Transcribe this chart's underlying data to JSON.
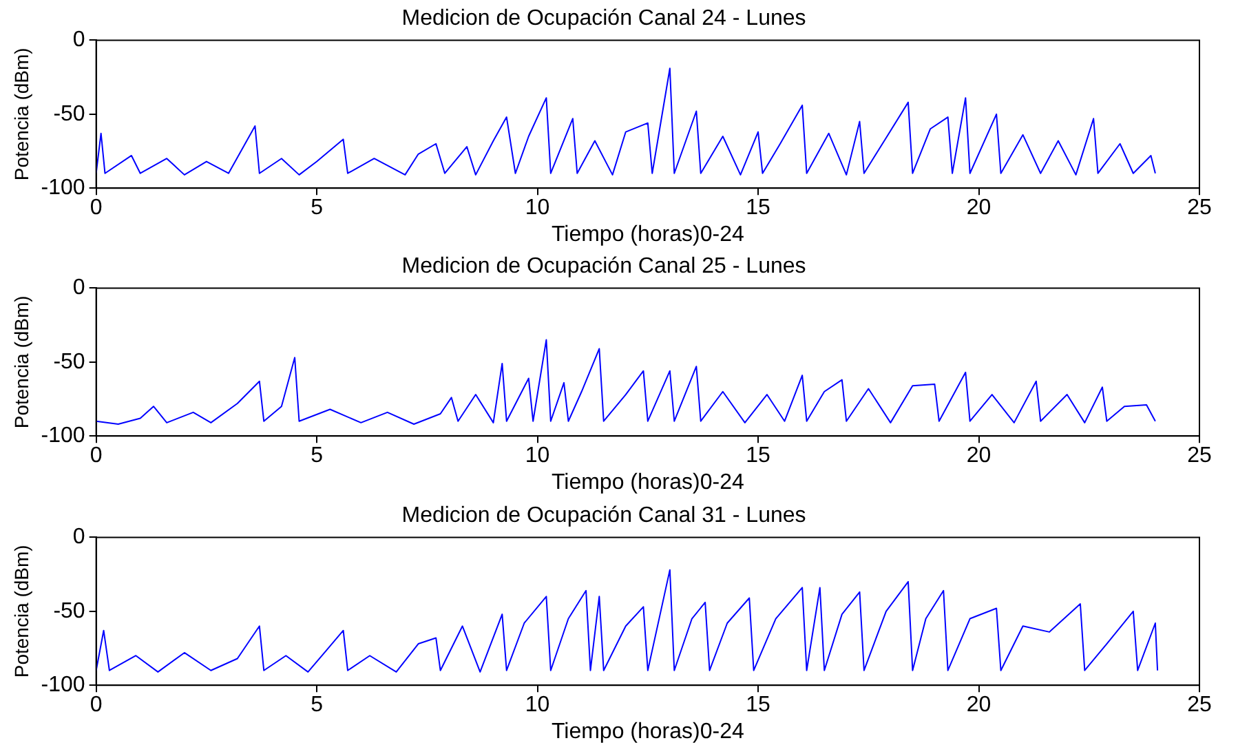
{
  "chart_data": [
    {
      "type": "line",
      "title": "Medicion de Ocupación Canal 24 - Lunes",
      "xlabel": "Tiempo (horas)0-24",
      "ylabel": "Potencia (dBm)",
      "xlim": [
        0,
        25
      ],
      "xticks": [
        0,
        5,
        10,
        15,
        20,
        25
      ],
      "ylim": [
        -100,
        0
      ],
      "yticks": [
        -100,
        -50,
        0
      ],
      "grid": false,
      "legend": false,
      "series": [
        {
          "color": "#0000ff",
          "x": [
            0,
            0.11,
            0.2,
            0.8,
            1.0,
            1.6,
            2.0,
            2.5,
            3.0,
            3.6,
            3.7,
            4.2,
            4.6,
            5.0,
            5.6,
            5.7,
            6.3,
            7.0,
            7.3,
            7.7,
            7.9,
            8.4,
            8.6,
            9.0,
            9.3,
            9.5,
            9.8,
            10.2,
            10.3,
            10.8,
            10.9,
            11.3,
            11.7,
            12.0,
            12.5,
            12.6,
            13.0,
            13.1,
            13.6,
            13.7,
            14.2,
            14.6,
            15.0,
            15.1,
            15.5,
            16.0,
            16.1,
            16.6,
            17.0,
            17.3,
            17.4,
            17.9,
            18.4,
            18.5,
            18.9,
            19.3,
            19.4,
            19.7,
            19.8,
            20.4,
            20.5,
            21.0,
            21.4,
            21.8,
            22.2,
            22.6,
            22.7,
            23.2,
            23.5,
            23.9,
            24.0
          ],
          "values": [
            -90,
            -63,
            -90,
            -78,
            -90,
            -80,
            -91,
            -82,
            -90,
            -58,
            -90,
            -80,
            -91,
            -82,
            -67,
            -90,
            -80,
            -91,
            -77,
            -70,
            -90,
            -72,
            -91,
            -68,
            -52,
            -90,
            -65,
            -39,
            -90,
            -53,
            -90,
            -68,
            -91,
            -62,
            -56,
            -90,
            -19,
            -90,
            -48,
            -90,
            -65,
            -91,
            -62,
            -90,
            -70,
            -44,
            -90,
            -63,
            -91,
            -55,
            -90,
            -66,
            -42,
            -90,
            -60,
            -52,
            -90,
            -39,
            -90,
            -50,
            -90,
            -64,
            -90,
            -68,
            -91,
            -53,
            -90,
            -70,
            -90,
            -78,
            -90
          ]
        }
      ]
    },
    {
      "type": "line",
      "title": "Medicion de Ocupación Canal 25 - Lunes",
      "xlabel": "Tiempo (horas)0-24",
      "ylabel": "Potencia (dBm)",
      "xlim": [
        0,
        25
      ],
      "xticks": [
        0,
        5,
        10,
        15,
        20,
        25
      ],
      "ylim": [
        -100,
        0
      ],
      "yticks": [
        -100,
        -50,
        0
      ],
      "grid": false,
      "legend": false,
      "series": [
        {
          "color": "#0000ff",
          "x": [
            0,
            0.5,
            1.0,
            1.3,
            1.6,
            2.2,
            2.6,
            3.2,
            3.7,
            3.8,
            4.2,
            4.5,
            4.6,
            5.3,
            6.0,
            6.6,
            7.2,
            7.8,
            8.05,
            8.2,
            8.6,
            9.0,
            9.2,
            9.3,
            9.8,
            9.9,
            10.2,
            10.3,
            10.6,
            10.7,
            11.0,
            11.4,
            11.5,
            12.0,
            12.4,
            12.5,
            13.0,
            13.1,
            13.6,
            13.7,
            14.2,
            14.7,
            15.2,
            15.6,
            16.0,
            16.1,
            16.5,
            16.9,
            17.0,
            17.5,
            18.0,
            18.5,
            19.0,
            19.1,
            19.7,
            19.8,
            20.3,
            20.8,
            21.3,
            21.4,
            22.0,
            22.4,
            22.8,
            22.9,
            23.3,
            23.8,
            24.0
          ],
          "values": [
            -90,
            -92,
            -88,
            -80,
            -91,
            -84,
            -91,
            -78,
            -63,
            -90,
            -80,
            -47,
            -90,
            -82,
            -91,
            -84,
            -92,
            -85,
            -74,
            -90,
            -72,
            -91,
            -51,
            -90,
            -61,
            -90,
            -35,
            -90,
            -64,
            -90,
            -70,
            -41,
            -90,
            -72,
            -56,
            -90,
            -56,
            -90,
            -53,
            -90,
            -70,
            -91,
            -72,
            -90,
            -59,
            -90,
            -70,
            -62,
            -90,
            -68,
            -91,
            -66,
            -65,
            -90,
            -57,
            -90,
            -72,
            -91,
            -63,
            -90,
            -72,
            -91,
            -67,
            -90,
            -80,
            -79,
            -90
          ]
        }
      ]
    },
    {
      "type": "line",
      "title": "Medicion de Ocupación Canal 31 - Lunes",
      "xlabel": "Tiempo (horas)0-24",
      "ylabel": "Potencia (dBm)",
      "xlim": [
        0,
        25
      ],
      "xticks": [
        0,
        5,
        10,
        15,
        20,
        25
      ],
      "ylim": [
        -100,
        0
      ],
      "yticks": [
        -100,
        -50,
        0
      ],
      "grid": false,
      "legend": false,
      "series": [
        {
          "color": "#0000ff",
          "x": [
            0,
            0.17,
            0.3,
            0.9,
            1.4,
            2.0,
            2.6,
            3.2,
            3.7,
            3.8,
            4.3,
            4.8,
            5.2,
            5.6,
            5.7,
            6.2,
            6.8,
            7.3,
            7.7,
            7.8,
            8.3,
            8.7,
            9.2,
            9.3,
            9.7,
            10.2,
            10.3,
            10.7,
            11.1,
            11.2,
            11.4,
            11.5,
            12.0,
            12.4,
            12.5,
            13.0,
            13.1,
            13.5,
            13.8,
            13.9,
            14.3,
            14.8,
            14.9,
            15.4,
            16.0,
            16.1,
            16.4,
            16.5,
            16.9,
            17.3,
            17.4,
            17.9,
            18.4,
            18.5,
            18.8,
            19.2,
            19.3,
            19.8,
            20.4,
            20.5,
            21.0,
            21.6,
            22.3,
            22.4,
            22.9,
            23.5,
            23.6,
            24.0,
            24.05
          ],
          "values": [
            -90,
            -63,
            -90,
            -80,
            -91,
            -78,
            -90,
            -82,
            -60,
            -90,
            -80,
            -91,
            -77,
            -63,
            -90,
            -80,
            -91,
            -72,
            -68,
            -90,
            -60,
            -91,
            -52,
            -90,
            -58,
            -40,
            -90,
            -55,
            -36,
            -90,
            -40,
            -90,
            -60,
            -47,
            -90,
            -22,
            -90,
            -55,
            -44,
            -90,
            -58,
            -41,
            -90,
            -55,
            -34,
            -90,
            -34,
            -90,
            -52,
            -37,
            -90,
            -50,
            -30,
            -90,
            -55,
            -36,
            -90,
            -55,
            -48,
            -90,
            -60,
            -64,
            -45,
            -90,
            -72,
            -50,
            -90,
            -58,
            -90
          ]
        }
      ]
    }
  ]
}
